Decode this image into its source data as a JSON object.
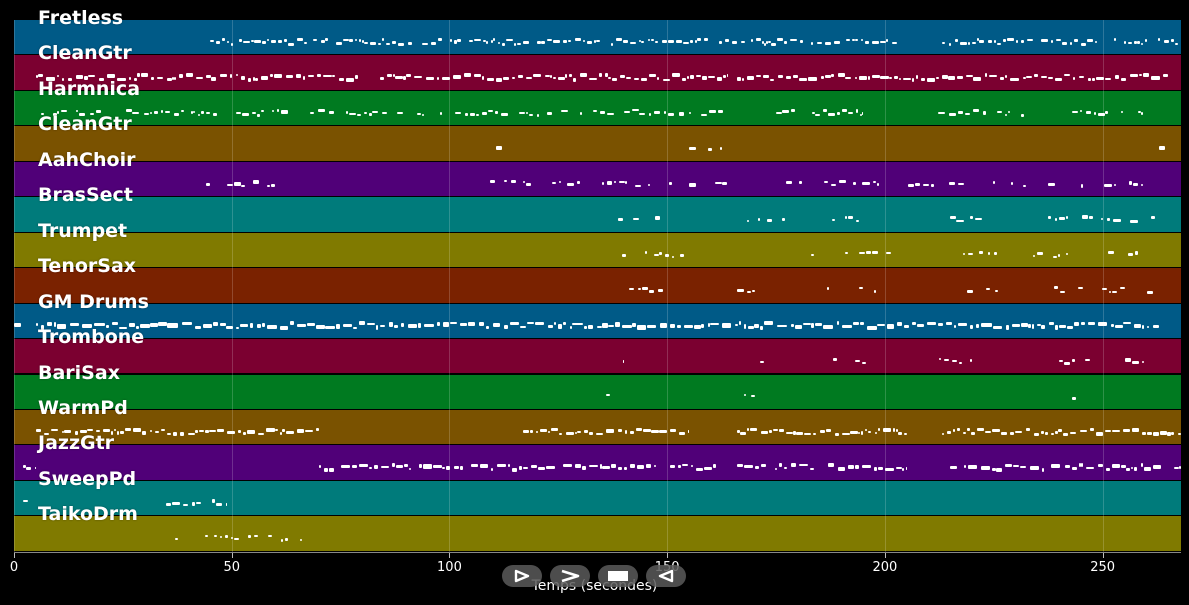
{
  "axis": {
    "xlabel": "Temps (secondes)",
    "xlim": [
      0,
      268
    ],
    "ticks": [
      0,
      50,
      100,
      150,
      200,
      250
    ],
    "tick_labels": [
      "0",
      "50",
      "100",
      "150",
      "200",
      "250"
    ]
  },
  "tracks": [
    {
      "name": "Fretless",
      "color": "#005a87",
      "density": 0.9,
      "size": 0.2,
      "segments": [
        [
          45,
          72
        ],
        [
          74,
          166
        ],
        [
          167,
          205
        ],
        [
          213,
          268
        ]
      ]
    },
    {
      "name": "CleanGtr",
      "color": "#7b0030",
      "density": 1.0,
      "size": 0.35,
      "segments": [
        [
          5,
          79
        ],
        [
          84,
          164
        ],
        [
          166,
          265
        ]
      ]
    },
    {
      "name": "Harmnica",
      "color": "#007a20",
      "density": 0.7,
      "size": 0.2,
      "segments": [
        [
          5,
          63
        ],
        [
          68,
          163
        ],
        [
          175,
          195
        ],
        [
          210,
          232
        ],
        [
          242,
          260
        ]
      ]
    },
    {
      "name": "CleanGtr",
      "color": "#7a5200",
      "density": 0.3,
      "size": 0.3,
      "segments": [
        [
          79,
          84
        ],
        [
          107,
          112
        ],
        [
          155,
          163
        ],
        [
          263,
          268
        ]
      ]
    },
    {
      "name": "AahChoir",
      "color": "#500078",
      "density": 0.6,
      "size": 0.25,
      "segments": [
        [
          44,
          53
        ],
        [
          55,
          60
        ],
        [
          107,
          131
        ],
        [
          135,
          151
        ],
        [
          155,
          164
        ],
        [
          176,
          181
        ],
        [
          186,
          200
        ],
        [
          204,
          262
        ]
      ]
    },
    {
      "name": "BrasSect",
      "color": "#007b7b",
      "density": 0.45,
      "size": 0.3,
      "segments": [
        [
          136,
          154
        ],
        [
          166,
          177
        ],
        [
          183,
          200
        ],
        [
          215,
          224
        ],
        [
          234,
          262
        ]
      ]
    },
    {
      "name": "Trumpet",
      "color": "#807a00",
      "density": 0.55,
      "size": 0.2,
      "segments": [
        [
          136,
          154
        ],
        [
          166,
          177
        ],
        [
          183,
          202
        ],
        [
          216,
          226
        ],
        [
          234,
          262
        ]
      ]
    },
    {
      "name": "TenorSax",
      "color": "#7a2200",
      "density": 0.5,
      "size": 0.2,
      "segments": [
        [
          136,
          151
        ],
        [
          166,
          177
        ],
        [
          182,
          198
        ],
        [
          216,
          226
        ],
        [
          238,
          262
        ]
      ]
    },
    {
      "name": "GM Drums",
      "color": "#005a87",
      "density": 1.0,
      "size": 0.5,
      "segments": [
        [
          0,
          2
        ],
        [
          5,
          263
        ]
      ]
    },
    {
      "name": "Trombone",
      "color": "#7b0030",
      "density": 0.25,
      "size": 0.2,
      "segments": [
        [
          136,
          140
        ],
        [
          153,
          154
        ],
        [
          170,
          176
        ],
        [
          186,
          196
        ],
        [
          208,
          220
        ],
        [
          235,
          262
        ]
      ]
    },
    {
      "name": "BariSax",
      "color": "#007a20",
      "density": 0.35,
      "size": 0.2,
      "segments": [
        [
          136,
          137
        ],
        [
          166,
          176
        ],
        [
          186,
          187
        ],
        [
          217,
          221
        ],
        [
          243,
          244
        ],
        [
          263,
          264
        ]
      ]
    },
    {
      "name": "WarmPd",
      "color": "#7a5200",
      "density": 1.0,
      "size": 0.3,
      "segments": [
        [
          5,
          70
        ],
        [
          117,
          155
        ],
        [
          166,
          205
        ],
        [
          213,
          268
        ]
      ]
    },
    {
      "name": "JazzGtr",
      "color": "#500078",
      "density": 0.9,
      "size": 0.4,
      "segments": [
        [
          2,
          5
        ],
        [
          70,
          166
        ],
        [
          166,
          205
        ],
        [
          215,
          268
        ]
      ]
    },
    {
      "name": "SweepPd",
      "color": "#007b7b",
      "density": 0.6,
      "size": 0.35,
      "segments": [
        [
          1,
          5
        ],
        [
          26,
          28
        ],
        [
          30,
          32
        ],
        [
          35,
          49
        ]
      ]
    },
    {
      "name": "TaikoDrm",
      "color": "#807a00",
      "density": 0.45,
      "size": 0.15,
      "segments": [
        [
          25,
          40
        ],
        [
          43,
          68
        ]
      ]
    }
  ],
  "controls": [
    {
      "name": "play",
      "icon": "play-icon"
    },
    {
      "name": "forward",
      "icon": "forward-icon"
    },
    {
      "name": "stop",
      "icon": "stop-icon"
    },
    {
      "name": "rewind",
      "icon": "rewind-icon"
    }
  ]
}
